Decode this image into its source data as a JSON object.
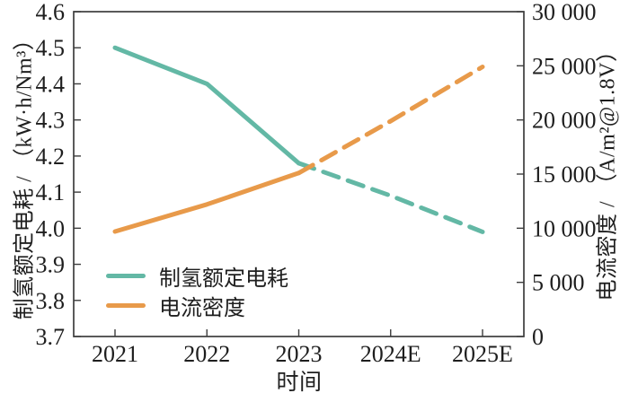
{
  "chart_data": {
    "type": "line",
    "title": "",
    "xlabel": "时间",
    "x_categories": [
      "2021",
      "2022",
      "2023",
      "2024E",
      "2025E"
    ],
    "left_axis": {
      "label": "制氢额定电耗 / （kW·h/Nm³）",
      "min": 3.7,
      "max": 4.6,
      "ticks": [
        "4.6",
        "4.5",
        "4.4",
        "4.3",
        "4.2",
        "4.1",
        "4.0",
        "3.9",
        "3.8",
        "3.7"
      ]
    },
    "right_axis": {
      "label": "电流密度 / （A/m²@1.8V）",
      "min": 0,
      "max": 30000,
      "ticks": [
        "30 000",
        "25 000",
        "20 000",
        "15 000",
        "10 000",
        "5 000",
        "0"
      ]
    },
    "series": [
      {
        "name": "制氢额定电耗",
        "axis": "left",
        "color": "#63b8a5",
        "values": [
          4.5,
          4.4,
          4.18,
          4.09,
          3.99
        ],
        "solid_until_index": 2,
        "note": "dashed segment covers forecast years 2024E-2025E"
      },
      {
        "name": "电流密度",
        "axis": "right",
        "color": "#e89a4a",
        "values": [
          9700,
          12200,
          15100,
          19900,
          24900
        ],
        "solid_until_index": 2,
        "note": "dashed segment covers forecast years 2024E-2025E"
      }
    ],
    "legend": {
      "position": "lower-left-inside",
      "entries": [
        "制氢额定电耗",
        "电流密度"
      ]
    },
    "grid": "off",
    "axis_color": "#3d3d3d",
    "text_color": "#1e1e1e"
  }
}
